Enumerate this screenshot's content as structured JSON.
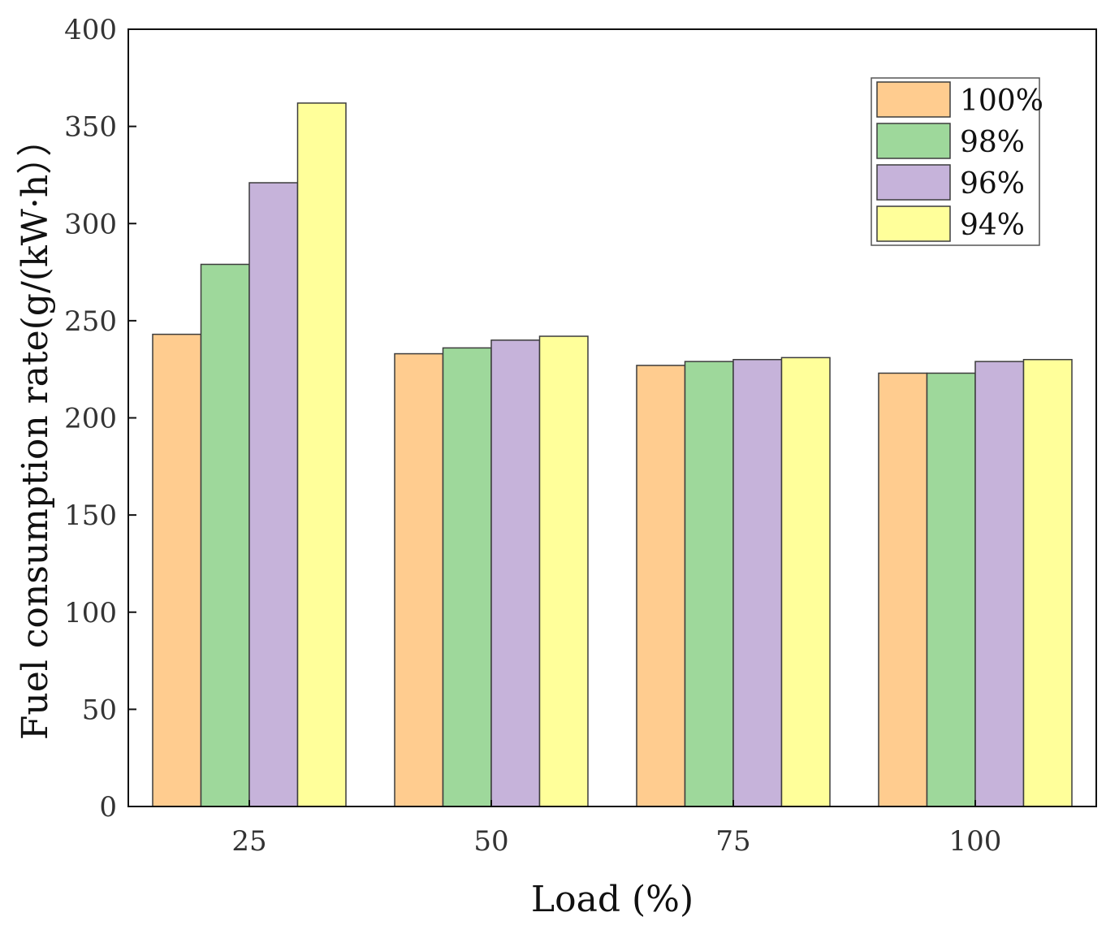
{
  "chart_data": {
    "type": "bar",
    "title": "",
    "xlabel": "Load (%)",
    "ylabel": "Fuel consumption rate(g/(kW·h））",
    "categories": [
      "25",
      "50",
      "75",
      "100"
    ],
    "series": [
      {
        "name": "100%",
        "color": "#FFCC8F",
        "values": [
          243,
          233,
          227,
          223
        ]
      },
      {
        "name": "98%",
        "color": "#9ED89B",
        "values": [
          279,
          236,
          229,
          223
        ]
      },
      {
        "name": "96%",
        "color": "#C6B3DA",
        "values": [
          321,
          240,
          230,
          229
        ]
      },
      {
        "name": "94%",
        "color": "#FFFF9A",
        "values": [
          362,
          242,
          231,
          230
        ]
      }
    ],
    "ylim": [
      0,
      400
    ],
    "yticks": [
      "0",
      "50",
      "100",
      "150",
      "200",
      "250",
      "300",
      "350",
      "400"
    ],
    "legend_position": "top-right",
    "grid": false
  }
}
